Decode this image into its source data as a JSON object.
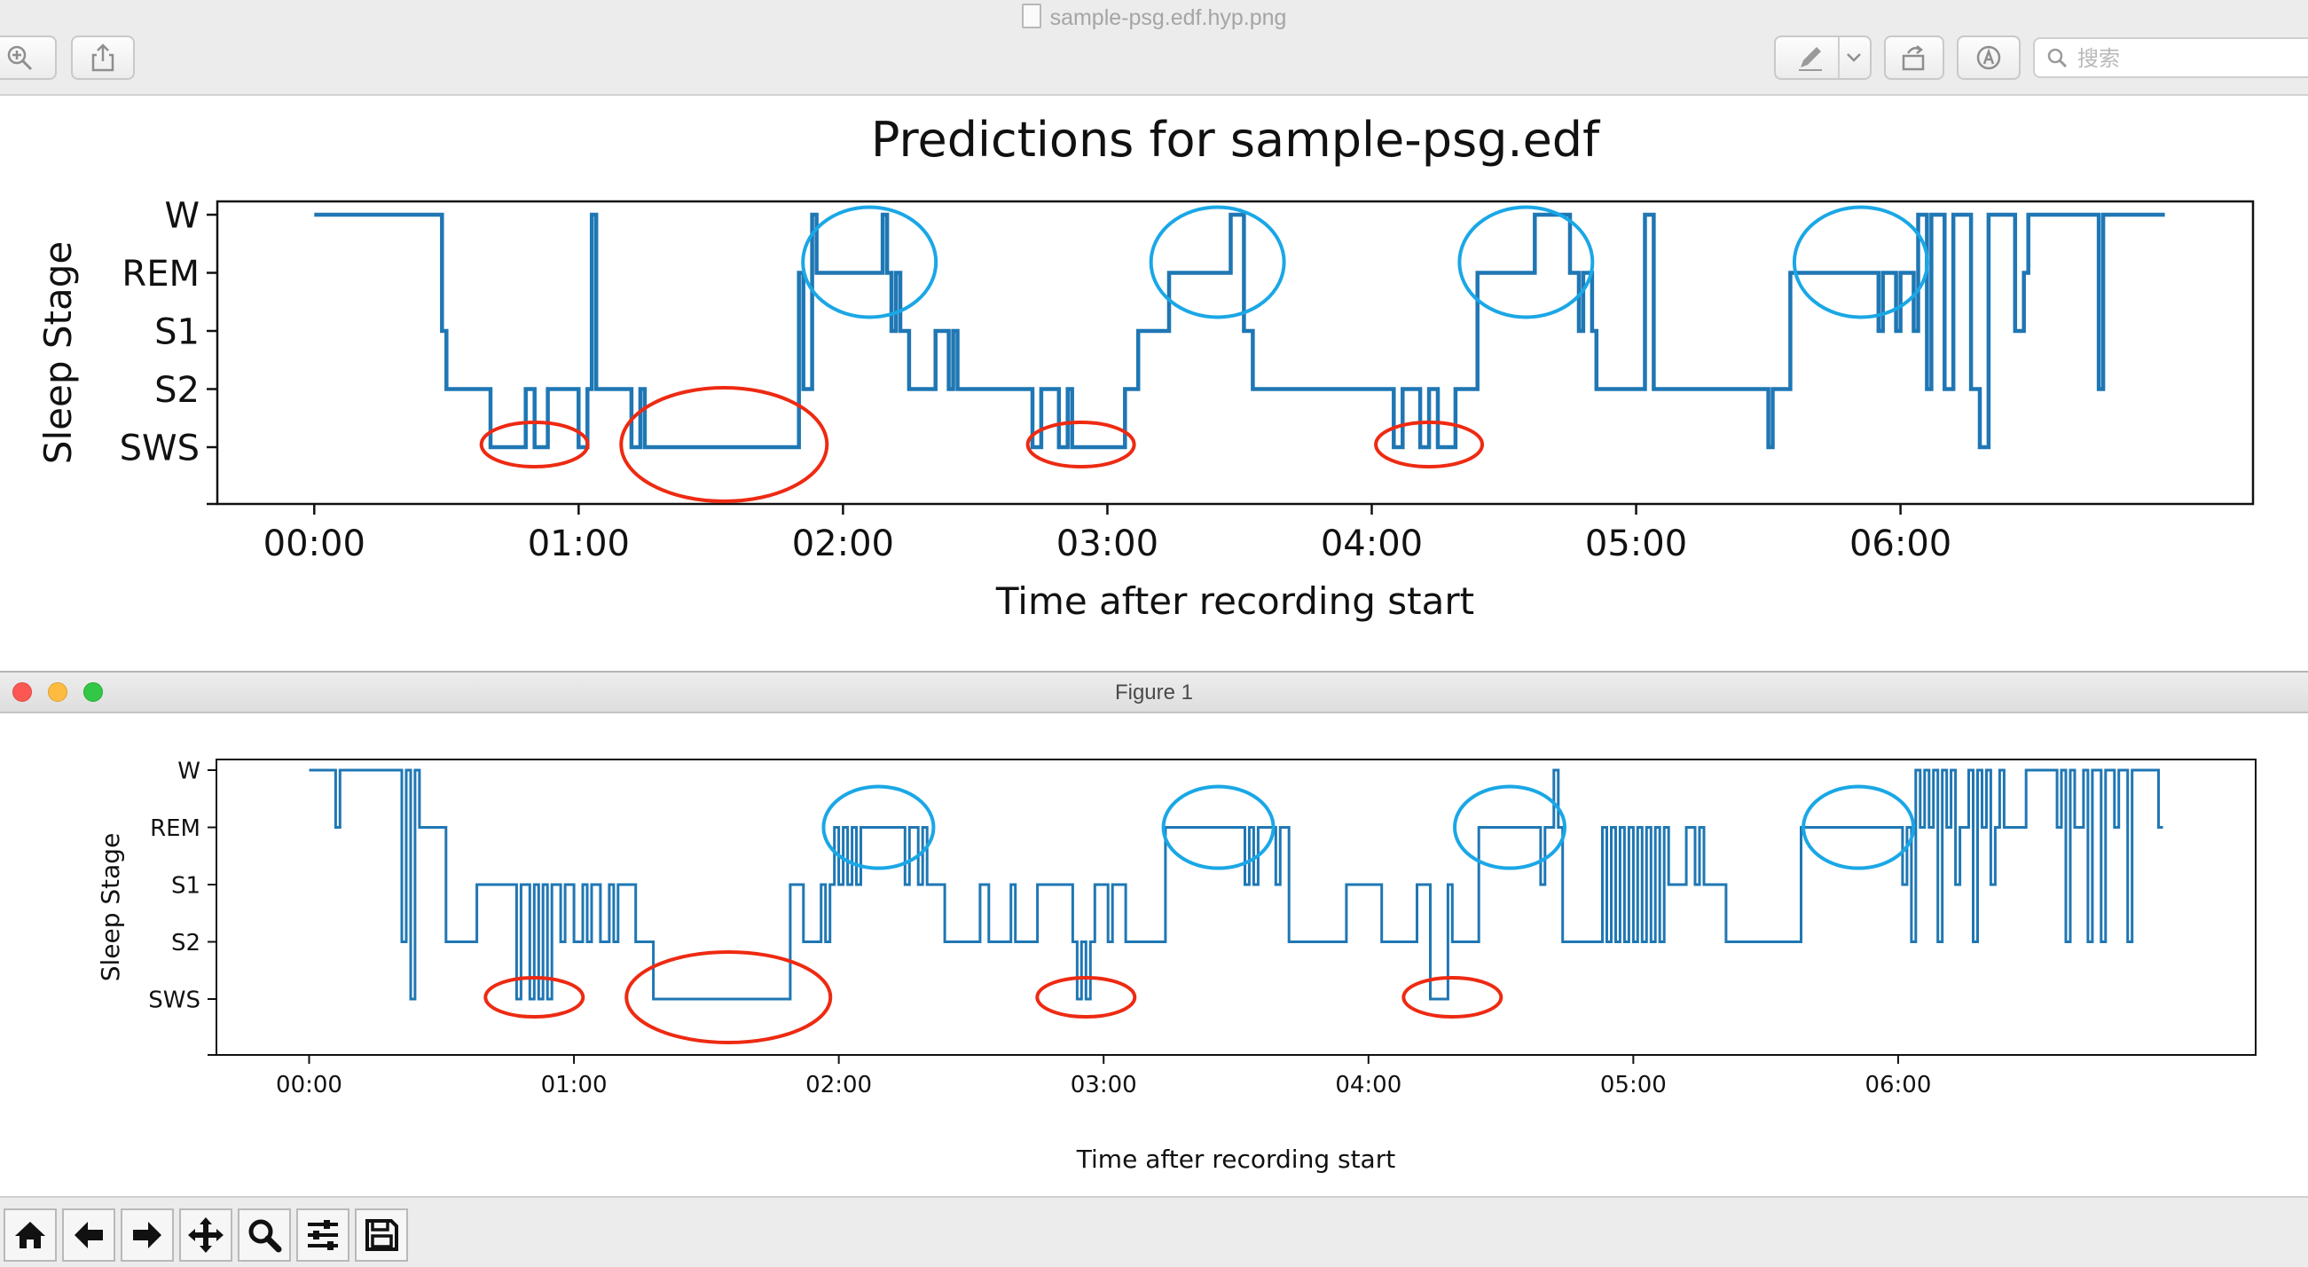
{
  "preview": {
    "title": "sample-psg.edf.hyp.png",
    "search_placeholder": "搜索",
    "toolbar_icons": [
      "zoom-in-icon",
      "share-icon",
      "markup-pen-icon",
      "chevron-down-icon",
      "rotate-icon",
      "annotate-icon",
      "search-icon"
    ]
  },
  "figure_window": {
    "title": "Figure 1",
    "toolbar_icons": [
      "home-icon",
      "back-arrow-icon",
      "forward-arrow-icon",
      "pan-move-icon",
      "zoom-icon",
      "configure-subplots-icon",
      "save-icon"
    ]
  },
  "colors": {
    "line": "#1f77b4",
    "rem_highlight": "#1aa7e6",
    "sws_highlight": "#ee2a12",
    "close": "#fc5753",
    "minimize": "#fdbc40",
    "zoom": "#33c748"
  },
  "chart_data": [
    {
      "type": "line",
      "step": true,
      "title": "Predictions for sample-psg.edf",
      "xlabel": "Time after recording start",
      "ylabel": "Sleep Stage",
      "x_unit": "minutes after recording start",
      "xticks": [
        "00:00",
        "01:00",
        "02:00",
        "03:00",
        "04:00",
        "05:00",
        "06:00"
      ],
      "yticks": [
        "W",
        "REM",
        "S1",
        "S2",
        "SWS"
      ],
      "xlim": [
        -22,
        440
      ],
      "grid": false,
      "steps": [
        [
          0,
          "W"
        ],
        [
          29,
          "S1"
        ],
        [
          30,
          "S2"
        ],
        [
          40,
          "SWS"
        ],
        [
          48,
          "S2"
        ],
        [
          50,
          "SWS"
        ],
        [
          53,
          "S2"
        ],
        [
          60,
          "SWS"
        ],
        [
          62,
          "S2"
        ],
        [
          63,
          "W"
        ],
        [
          64,
          "S2"
        ],
        [
          72,
          "SWS"
        ],
        [
          74,
          "S2"
        ],
        [
          75,
          "SWS"
        ],
        [
          110,
          "REM"
        ],
        [
          111,
          "S2"
        ],
        [
          113,
          "W"
        ],
        [
          114,
          "REM"
        ],
        [
          129,
          "W"
        ],
        [
          130,
          "REM"
        ],
        [
          131,
          "S1"
        ],
        [
          132,
          "REM"
        ],
        [
          133,
          "S1"
        ],
        [
          135,
          "S2"
        ],
        [
          141,
          "S1"
        ],
        [
          144,
          "S2"
        ],
        [
          145,
          "S1"
        ],
        [
          146,
          "S2"
        ],
        [
          163,
          "SWS"
        ],
        [
          165,
          "S2"
        ],
        [
          169,
          "SWS"
        ],
        [
          171,
          "S2"
        ],
        [
          172,
          "SWS"
        ],
        [
          184,
          "S2"
        ],
        [
          187,
          "S1"
        ],
        [
          194,
          "REM"
        ],
        [
          208,
          "W"
        ],
        [
          211,
          "S1"
        ],
        [
          213,
          "S2"
        ],
        [
          245,
          "SWS"
        ],
        [
          247,
          "S2"
        ],
        [
          251,
          "SWS"
        ],
        [
          253,
          "S2"
        ],
        [
          255,
          "SWS"
        ],
        [
          259,
          "S2"
        ],
        [
          264,
          "REM"
        ],
        [
          277,
          "W"
        ],
        [
          285,
          "REM"
        ],
        [
          287,
          "S1"
        ],
        [
          288,
          "REM"
        ],
        [
          290,
          "S1"
        ],
        [
          291,
          "S2"
        ],
        [
          302,
          "W"
        ],
        [
          304,
          "S2"
        ],
        [
          330,
          "SWS"
        ],
        [
          331,
          "S2"
        ],
        [
          335,
          "REM"
        ],
        [
          355,
          "S1"
        ],
        [
          356,
          "REM"
        ],
        [
          359,
          "S1"
        ],
        [
          360,
          "REM"
        ],
        [
          363,
          "S1"
        ],
        [
          364,
          "W"
        ],
        [
          366,
          "S2"
        ],
        [
          367,
          "W"
        ],
        [
          370,
          "S2"
        ],
        [
          372,
          "W"
        ],
        [
          376,
          "S2"
        ],
        [
          378,
          "SWS"
        ],
        [
          380,
          "W"
        ],
        [
          386,
          "S1"
        ],
        [
          388,
          "REM"
        ],
        [
          389,
          "W"
        ],
        [
          405,
          "S2"
        ],
        [
          406,
          "W"
        ],
        [
          420,
          "W"
        ]
      ],
      "annotations": [
        {
          "shape": "ellipse",
          "color": "blue",
          "stage": "REM",
          "center_min": 126
        },
        {
          "shape": "ellipse",
          "color": "blue",
          "stage": "REM",
          "center_min": 205
        },
        {
          "shape": "ellipse",
          "color": "blue",
          "stage": "REM",
          "center_min": 275
        },
        {
          "shape": "ellipse",
          "color": "blue",
          "stage": "REM",
          "center_min": 351
        },
        {
          "shape": "ellipse",
          "color": "red",
          "stage": "SWS",
          "center_min": 50
        },
        {
          "shape": "ellipse",
          "color": "red",
          "stage": "SWS",
          "center_min": 93
        },
        {
          "shape": "ellipse",
          "color": "red",
          "stage": "SWS",
          "center_min": 174
        },
        {
          "shape": "ellipse",
          "color": "red",
          "stage": "SWS",
          "center_min": 253
        }
      ]
    },
    {
      "type": "line",
      "step": true,
      "title": "",
      "xlabel": "Time after recording start",
      "ylabel": "Sleep Stage",
      "x_unit": "minutes after recording start",
      "xticks": [
        "00:00",
        "01:00",
        "02:00",
        "03:00",
        "04:00",
        "05:00",
        "06:00"
      ],
      "yticks": [
        "W",
        "REM",
        "S1",
        "S2",
        "SWS"
      ],
      "xlim": [
        -21,
        441
      ],
      "grid": false,
      "steps": [
        [
          0,
          "W"
        ],
        [
          6,
          "REM"
        ],
        [
          7,
          "W"
        ],
        [
          21,
          "S2"
        ],
        [
          22,
          "W"
        ],
        [
          23,
          "SWS"
        ],
        [
          24,
          "W"
        ],
        [
          25,
          "REM"
        ],
        [
          31,
          "S2"
        ],
        [
          38,
          "S1"
        ],
        [
          47,
          "SWS"
        ],
        [
          48,
          "S1"
        ],
        [
          50,
          "SWS"
        ],
        [
          51,
          "S1"
        ],
        [
          52,
          "SWS"
        ],
        [
          53,
          "S1"
        ],
        [
          54,
          "SWS"
        ],
        [
          55,
          "S1"
        ],
        [
          57,
          "S2"
        ],
        [
          58,
          "S1"
        ],
        [
          60,
          "S2"
        ],
        [
          62,
          "S1"
        ],
        [
          63,
          "S2"
        ],
        [
          64,
          "S1"
        ],
        [
          66,
          "S2"
        ],
        [
          68,
          "S1"
        ],
        [
          69,
          "S2"
        ],
        [
          70,
          "S1"
        ],
        [
          74,
          "S2"
        ],
        [
          78,
          "SWS"
        ],
        [
          109,
          "S1"
        ],
        [
          112,
          "S2"
        ],
        [
          116,
          "S1"
        ],
        [
          117,
          "S2"
        ],
        [
          118,
          "S1"
        ],
        [
          119,
          "REM"
        ],
        [
          120,
          "S1"
        ],
        [
          121,
          "REM"
        ],
        [
          122,
          "S1"
        ],
        [
          123,
          "REM"
        ],
        [
          124,
          "S1"
        ],
        [
          125,
          "REM"
        ],
        [
          135,
          "S1"
        ],
        [
          136,
          "REM"
        ],
        [
          138,
          "S1"
        ],
        [
          139,
          "REM"
        ],
        [
          140,
          "S1"
        ],
        [
          144,
          "S2"
        ],
        [
          152,
          "S1"
        ],
        [
          154,
          "S2"
        ],
        [
          159,
          "S1"
        ],
        [
          160,
          "S2"
        ],
        [
          165,
          "S1"
        ],
        [
          173,
          "S2"
        ],
        [
          174,
          "SWS"
        ],
        [
          175,
          "S2"
        ],
        [
          176,
          "SWS"
        ],
        [
          177,
          "S2"
        ],
        [
          178,
          "S1"
        ],
        [
          181,
          "S2"
        ],
        [
          182,
          "S1"
        ],
        [
          185,
          "S2"
        ],
        [
          194,
          "REM"
        ],
        [
          212,
          "S1"
        ],
        [
          213,
          "REM"
        ],
        [
          214,
          "S1"
        ],
        [
          215,
          "REM"
        ],
        [
          219,
          "S1"
        ],
        [
          220,
          "REM"
        ],
        [
          222,
          "S2"
        ],
        [
          235,
          "S1"
        ],
        [
          243,
          "S2"
        ],
        [
          251,
          "S1"
        ],
        [
          254,
          "SWS"
        ],
        [
          258,
          "S1"
        ],
        [
          259,
          "S2"
        ],
        [
          265,
          "REM"
        ],
        [
          279,
          "S1"
        ],
        [
          280,
          "REM"
        ],
        [
          282,
          "W"
        ],
        [
          283,
          "REM"
        ],
        [
          284,
          "S2"
        ],
        [
          293,
          "REM"
        ],
        [
          294,
          "S2"
        ],
        [
          295,
          "REM"
        ],
        [
          296,
          "S2"
        ],
        [
          297,
          "REM"
        ],
        [
          298,
          "S2"
        ],
        [
          299,
          "REM"
        ],
        [
          300,
          "S2"
        ],
        [
          301,
          "REM"
        ],
        [
          302,
          "S2"
        ],
        [
          303,
          "REM"
        ],
        [
          304,
          "S2"
        ],
        [
          305,
          "REM"
        ],
        [
          306,
          "S2"
        ],
        [
          307,
          "REM"
        ],
        [
          308,
          "S1"
        ],
        [
          312,
          "REM"
        ],
        [
          314,
          "S1"
        ],
        [
          315,
          "REM"
        ],
        [
          316,
          "S1"
        ],
        [
          321,
          "S2"
        ],
        [
          338,
          "REM"
        ],
        [
          361,
          "S1"
        ],
        [
          362,
          "REM"
        ],
        [
          363,
          "S2"
        ],
        [
          364,
          "W"
        ],
        [
          365,
          "REM"
        ],
        [
          366,
          "W"
        ],
        [
          367,
          "REM"
        ],
        [
          368,
          "W"
        ],
        [
          369,
          "S2"
        ],
        [
          370,
          "W"
        ],
        [
          371,
          "REM"
        ],
        [
          372,
          "W"
        ],
        [
          373,
          "S1"
        ],
        [
          374,
          "REM"
        ],
        [
          376,
          "W"
        ],
        [
          377,
          "S2"
        ],
        [
          378,
          "W"
        ],
        [
          379,
          "REM"
        ],
        [
          380,
          "W"
        ],
        [
          381,
          "S1"
        ],
        [
          382,
          "REM"
        ],
        [
          383,
          "W"
        ],
        [
          384,
          "REM"
        ],
        [
          389,
          "W"
        ],
        [
          396,
          "REM"
        ],
        [
          397,
          "W"
        ],
        [
          398,
          "S2"
        ],
        [
          399,
          "W"
        ],
        [
          400,
          "REM"
        ],
        [
          402,
          "W"
        ],
        [
          403,
          "S2"
        ],
        [
          404,
          "W"
        ],
        [
          406,
          "S2"
        ],
        [
          407,
          "W"
        ],
        [
          409,
          "REM"
        ],
        [
          410,
          "W"
        ],
        [
          412,
          "S2"
        ],
        [
          413,
          "W"
        ],
        [
          419,
          "REM"
        ],
        [
          420,
          "REM"
        ]
      ],
      "annotations": [
        {
          "shape": "ellipse",
          "color": "blue",
          "stage": "REM",
          "center_min": 129
        },
        {
          "shape": "ellipse",
          "color": "blue",
          "stage": "REM",
          "center_min": 206
        },
        {
          "shape": "ellipse",
          "color": "blue",
          "stage": "REM",
          "center_min": 272
        },
        {
          "shape": "ellipse",
          "color": "blue",
          "stage": "REM",
          "center_min": 351
        },
        {
          "shape": "ellipse",
          "color": "red",
          "stage": "SWS",
          "center_min": 51
        },
        {
          "shape": "ellipse",
          "color": "red",
          "stage": "SWS",
          "center_min": 95
        },
        {
          "shape": "ellipse",
          "color": "red",
          "stage": "SWS",
          "center_min": 176
        },
        {
          "shape": "ellipse",
          "color": "red",
          "stage": "SWS",
          "center_min": 259
        }
      ]
    }
  ]
}
